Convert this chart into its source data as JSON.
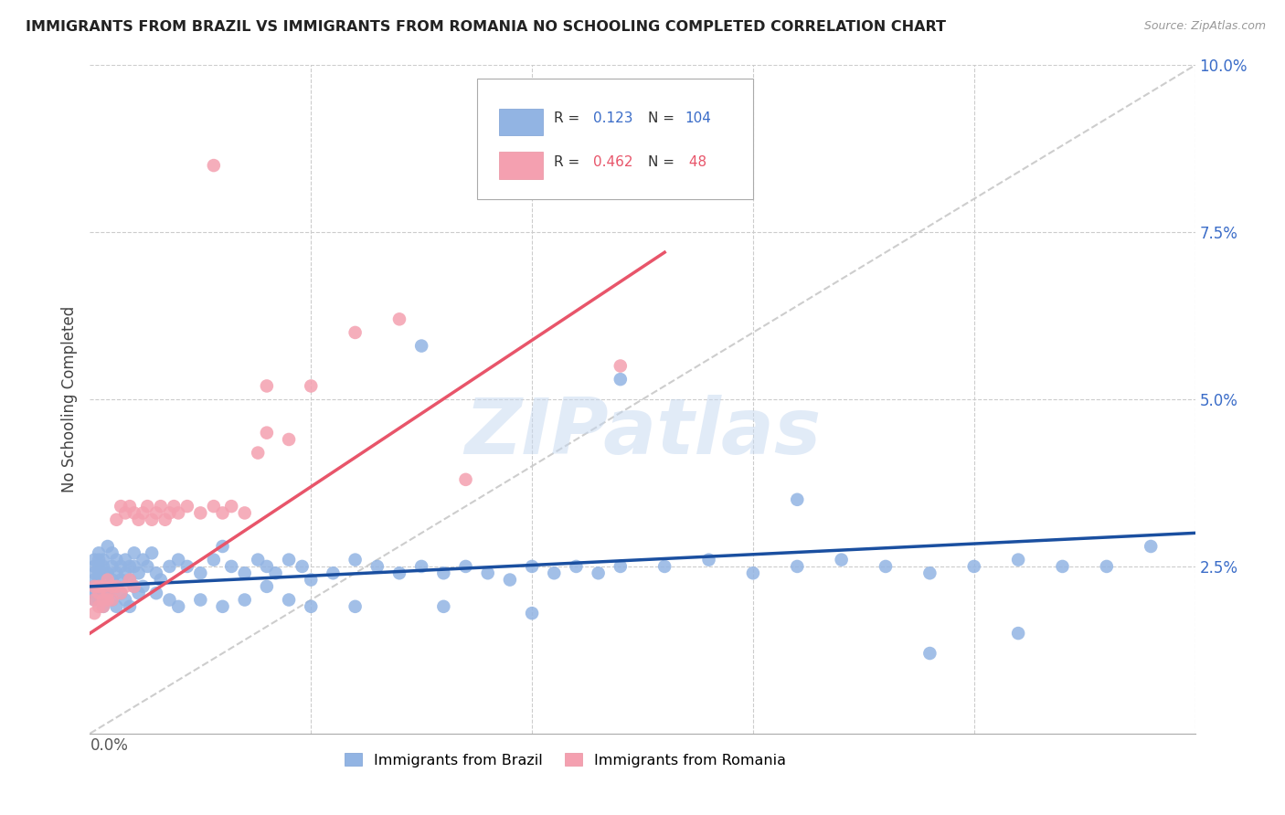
{
  "title": "IMMIGRANTS FROM BRAZIL VS IMMIGRANTS FROM ROMANIA NO SCHOOLING COMPLETED CORRELATION CHART",
  "source": "Source: ZipAtlas.com",
  "ylabel": "No Schooling Completed",
  "xlim": [
    0.0,
    0.25
  ],
  "ylim": [
    0.0,
    0.1
  ],
  "brazil_color": "#92b4e3",
  "romania_color": "#f4a0b0",
  "brazil_r": 0.123,
  "brazil_n": 104,
  "romania_r": 0.462,
  "romania_n": 48,
  "diagonal_color": "#c8c8c8",
  "brazil_line_color": "#1a4fa0",
  "romania_line_color": "#e8556a",
  "brazil_line_color_legend": "#4472c4",
  "romania_line_color_legend": "#ed7d31",
  "watermark_color": "#c5d8f0",
  "brazil_x": [
    0.001,
    0.001,
    0.001,
    0.001,
    0.001,
    0.001,
    0.001,
    0.002,
    0.002,
    0.002,
    0.002,
    0.002,
    0.002,
    0.003,
    0.003,
    0.003,
    0.003,
    0.004,
    0.004,
    0.004,
    0.005,
    0.005,
    0.005,
    0.006,
    0.006,
    0.006,
    0.007,
    0.007,
    0.008,
    0.008,
    0.009,
    0.009,
    0.01,
    0.01,
    0.011,
    0.012,
    0.013,
    0.014,
    0.015,
    0.016,
    0.018,
    0.02,
    0.022,
    0.025,
    0.028,
    0.03,
    0.032,
    0.035,
    0.038,
    0.04,
    0.042,
    0.045,
    0.048,
    0.05,
    0.055,
    0.06,
    0.065,
    0.07,
    0.075,
    0.08,
    0.085,
    0.09,
    0.095,
    0.1,
    0.105,
    0.11,
    0.115,
    0.12,
    0.13,
    0.14,
    0.15,
    0.16,
    0.17,
    0.18,
    0.19,
    0.2,
    0.21,
    0.22,
    0.23,
    0.24,
    0.001,
    0.002,
    0.003,
    0.004,
    0.005,
    0.006,
    0.007,
    0.008,
    0.009,
    0.01,
    0.011,
    0.012,
    0.015,
    0.018,
    0.02,
    0.025,
    0.03,
    0.035,
    0.04,
    0.045,
    0.05,
    0.06,
    0.08,
    0.1
  ],
  "brazil_y": [
    0.022,
    0.024,
    0.025,
    0.026,
    0.023,
    0.021,
    0.02,
    0.025,
    0.027,
    0.023,
    0.022,
    0.024,
    0.026,
    0.024,
    0.026,
    0.022,
    0.025,
    0.028,
    0.024,
    0.022,
    0.027,
    0.023,
    0.025,
    0.026,
    0.024,
    0.022,
    0.025,
    0.023,
    0.026,
    0.024,
    0.025,
    0.023,
    0.027,
    0.025,
    0.024,
    0.026,
    0.025,
    0.027,
    0.024,
    0.023,
    0.025,
    0.026,
    0.025,
    0.024,
    0.026,
    0.028,
    0.025,
    0.024,
    0.026,
    0.025,
    0.024,
    0.026,
    0.025,
    0.023,
    0.024,
    0.026,
    0.025,
    0.024,
    0.025,
    0.024,
    0.025,
    0.024,
    0.023,
    0.025,
    0.024,
    0.025,
    0.024,
    0.025,
    0.025,
    0.026,
    0.024,
    0.025,
    0.026,
    0.025,
    0.024,
    0.025,
    0.026,
    0.025,
    0.025,
    0.028,
    0.021,
    0.02,
    0.019,
    0.021,
    0.02,
    0.019,
    0.021,
    0.02,
    0.019,
    0.022,
    0.021,
    0.022,
    0.021,
    0.02,
    0.019,
    0.02,
    0.019,
    0.02,
    0.022,
    0.02,
    0.019,
    0.019,
    0.019,
    0.018
  ],
  "romania_x": [
    0.001,
    0.001,
    0.001,
    0.002,
    0.002,
    0.002,
    0.003,
    0.003,
    0.003,
    0.004,
    0.004,
    0.004,
    0.005,
    0.005,
    0.006,
    0.006,
    0.007,
    0.007,
    0.008,
    0.008,
    0.009,
    0.009,
    0.01,
    0.01,
    0.011,
    0.012,
    0.013,
    0.014,
    0.015,
    0.016,
    0.017,
    0.018,
    0.019,
    0.02,
    0.022,
    0.025,
    0.028,
    0.03,
    0.032,
    0.035,
    0.038,
    0.04,
    0.045,
    0.05,
    0.06,
    0.07,
    0.085,
    0.12
  ],
  "romania_y": [
    0.022,
    0.02,
    0.018,
    0.021,
    0.019,
    0.022,
    0.02,
    0.022,
    0.019,
    0.021,
    0.023,
    0.02,
    0.022,
    0.02,
    0.032,
    0.022,
    0.034,
    0.021,
    0.033,
    0.022,
    0.034,
    0.023,
    0.033,
    0.022,
    0.032,
    0.033,
    0.034,
    0.032,
    0.033,
    0.034,
    0.032,
    0.033,
    0.034,
    0.033,
    0.034,
    0.033,
    0.034,
    0.033,
    0.034,
    0.033,
    0.042,
    0.045,
    0.044,
    0.052,
    0.06,
    0.062,
    0.038,
    0.055
  ]
}
